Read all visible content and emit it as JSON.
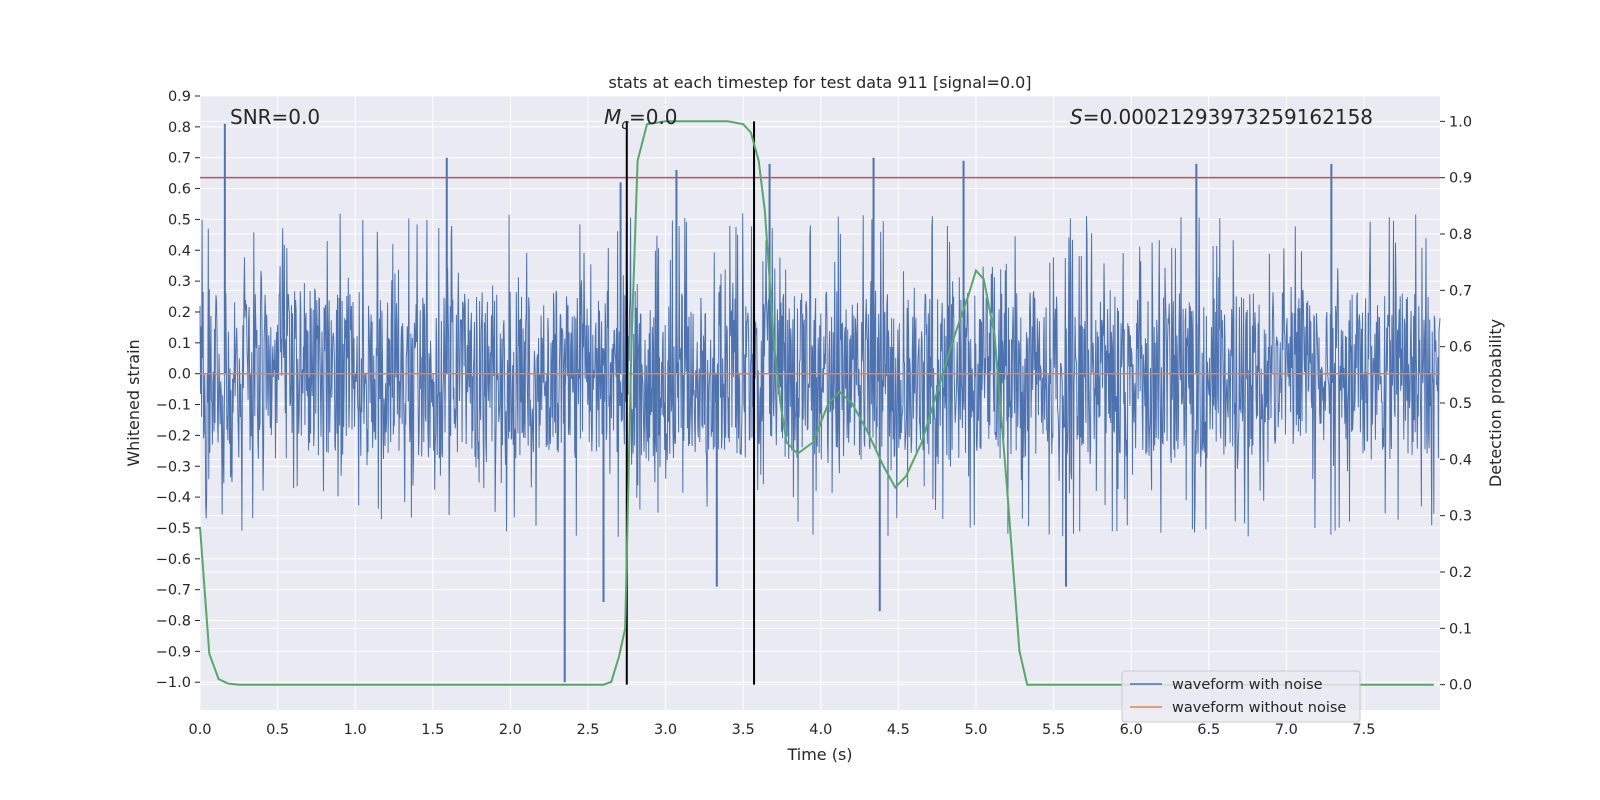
{
  "chart_data": {
    "type": "line",
    "title": "stats at each timestep for test data 911 [signal=0.0]",
    "xlabel": "Time (s)",
    "ylabel": "Whitened strain",
    "y2label": "Detection probability",
    "xlim": [
      0.0,
      7.99
    ],
    "ylim": [
      -1.09,
      0.9
    ],
    "y2lim": [
      -0.045,
      1.045
    ],
    "xticks": [
      0.0,
      0.5,
      1.0,
      1.5,
      2.0,
      2.5,
      3.0,
      3.5,
      4.0,
      4.5,
      5.0,
      5.5,
      6.0,
      6.5,
      7.0,
      7.5
    ],
    "xtick_labels": [
      "0.0",
      "0.5",
      "1.0",
      "1.5",
      "2.0",
      "2.5",
      "3.0",
      "3.5",
      "4.0",
      "4.5",
      "5.0",
      "5.5",
      "6.0",
      "6.5",
      "7.0",
      "7.5"
    ],
    "yticks": [
      0.9,
      0.8,
      0.7,
      0.6,
      0.5,
      0.4,
      0.3,
      0.2,
      0.1,
      0.0,
      -0.1,
      -0.2,
      -0.3,
      -0.4,
      -0.5,
      -0.6,
      -0.7,
      -0.8,
      -0.9,
      -1.0
    ],
    "ytick_labels": [
      "0.9",
      "0.8",
      "0.7",
      "0.6",
      "0.5",
      "0.4",
      "0.3",
      "0.2",
      "0.1",
      "0.0",
      "−0.1",
      "−0.2",
      "−0.3",
      "−0.4",
      "−0.5",
      "−0.6",
      "−0.7",
      "−0.8",
      "−0.9",
      "−1.0"
    ],
    "y2ticks": [
      1.0,
      0.9,
      0.8,
      0.7,
      0.6,
      0.5,
      0.4,
      0.3,
      0.2,
      0.1,
      0.0
    ],
    "y2tick_labels": [
      "1.0",
      "0.9",
      "0.8",
      "0.7",
      "0.6",
      "0.5",
      "0.4",
      "0.3",
      "0.2",
      "0.1",
      "0.0"
    ],
    "grid": true,
    "annotations": {
      "snr": "SNR=0.0",
      "mc_symbol": "M",
      "mc_sub": "c",
      "mc_value": "=0.0",
      "s_symbol": "S",
      "s_value": "=0.00021293973259162158"
    },
    "series": [
      {
        "name": "waveform with noise",
        "color": "#4c72b0",
        "description": "dense whitened noise, typical envelope about ±0.3 with spikes up to 0.81 and down to −1.0",
        "band": [
          -0.28,
          0.27
        ],
        "n_points": 2400,
        "spikes": [
          {
            "x": 0.16,
            "y": 0.81
          },
          {
            "x": 1.59,
            "y": 0.7
          },
          {
            "x": 2.35,
            "y": -1.0
          },
          {
            "x": 2.6,
            "y": -0.74
          },
          {
            "x": 2.71,
            "y": 0.62
          },
          {
            "x": 3.07,
            "y": 0.66
          },
          {
            "x": 3.33,
            "y": -0.69
          },
          {
            "x": 3.67,
            "y": 0.68
          },
          {
            "x": 4.34,
            "y": 0.7
          },
          {
            "x": 4.38,
            "y": -0.77
          },
          {
            "x": 4.92,
            "y": 0.69
          },
          {
            "x": 5.58,
            "y": -0.69
          },
          {
            "x": 6.42,
            "y": 0.68
          },
          {
            "x": 7.29,
            "y": 0.68
          }
        ]
      },
      {
        "name": "waveform without noise",
        "color": "#dd8452",
        "x": [
          0.0,
          7.99
        ],
        "y": [
          0.0,
          0.0
        ]
      },
      {
        "name": "detection probability",
        "color": "#55a868",
        "axis": "right",
        "x": [
          0.0,
          0.06,
          0.12,
          0.18,
          0.25,
          0.5,
          1.0,
          1.5,
          2.0,
          2.5,
          2.6,
          2.65,
          2.7,
          2.74,
          2.78,
          2.82,
          2.88,
          3.0,
          3.2,
          3.4,
          3.5,
          3.55,
          3.6,
          3.64,
          3.67,
          3.7,
          3.74,
          3.78,
          3.85,
          3.95,
          4.05,
          4.12,
          4.2,
          4.3,
          4.4,
          4.48,
          4.55,
          4.65,
          4.75,
          4.85,
          4.95,
          5.0,
          5.05,
          5.12,
          5.2,
          5.28,
          5.33,
          5.4,
          5.5,
          6.0,
          7.0,
          7.95
        ],
        "y": [
          0.28,
          0.055,
          0.01,
          0.002,
          0.0,
          0.0,
          0.0,
          0.0,
          0.0,
          0.0,
          0.0,
          0.005,
          0.05,
          0.1,
          0.6,
          0.93,
          0.995,
          1.0,
          1.0,
          1.0,
          0.995,
          0.98,
          0.93,
          0.84,
          0.72,
          0.6,
          0.5,
          0.43,
          0.41,
          0.43,
          0.5,
          0.52,
          0.5,
          0.45,
          0.39,
          0.35,
          0.37,
          0.43,
          0.52,
          0.61,
          0.69,
          0.735,
          0.72,
          0.62,
          0.35,
          0.06,
          0.0,
          0.0,
          0.0,
          0.0,
          0.0,
          0.0
        ]
      }
    ],
    "threshold": {
      "y2": 0.9,
      "color": "#c44e52"
    },
    "vlines": [
      {
        "x": 2.75,
        "color": "#000000"
      },
      {
        "x": 3.57,
        "color": "#000000"
      }
    ],
    "legend": {
      "placement": "bottom-right",
      "entries": [
        {
          "label": "waveform with noise",
          "color": "#4c72b0"
        },
        {
          "label": "waveform without noise",
          "color": "#dd8452"
        }
      ]
    },
    "colors": {
      "axes_background": "#eaeaf2",
      "grid": "#ffffff",
      "text": "#262626"
    }
  }
}
